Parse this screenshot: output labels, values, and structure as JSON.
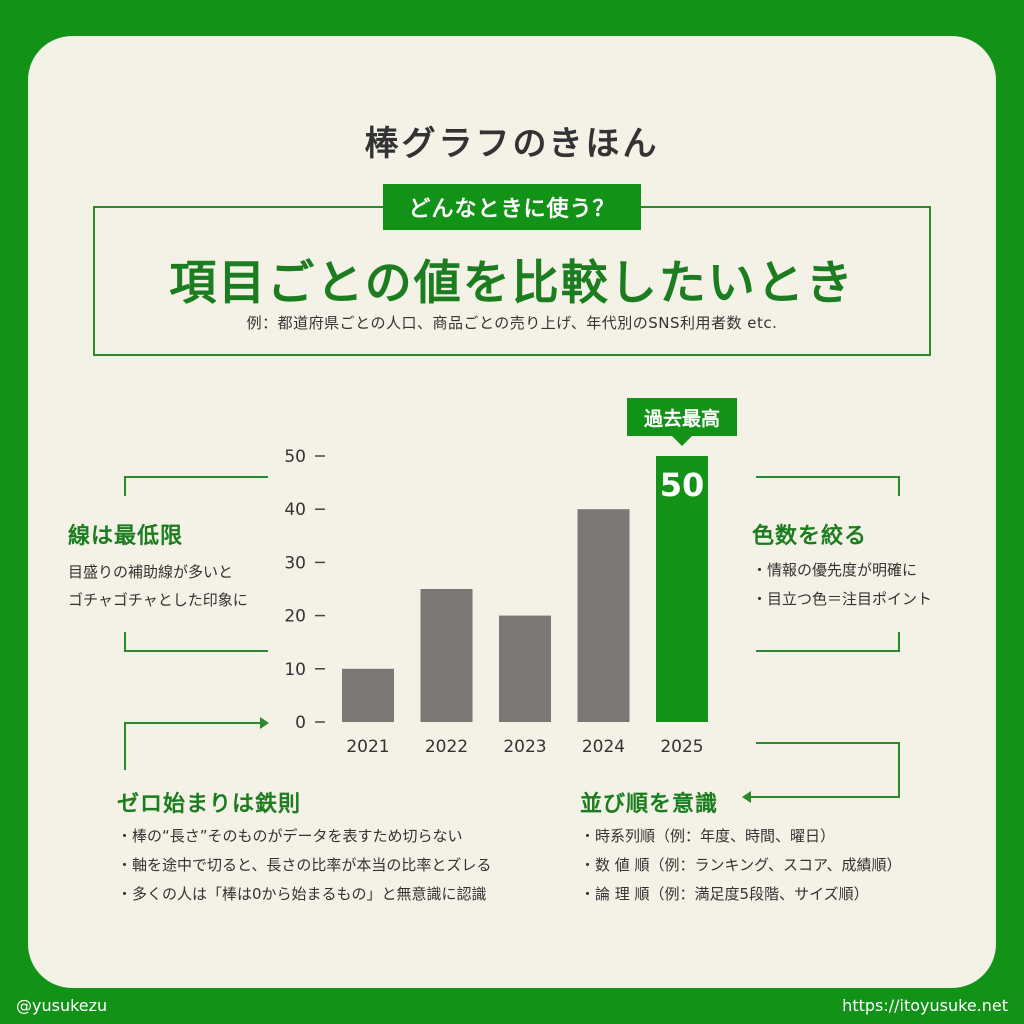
{
  "page": {
    "title": "棒グラフのきほん",
    "tag": "どんなときに使う？",
    "headline": "項目ごとの値を比較したいとき",
    "example": "例：都道府県ごとの人口、商品ごとの売り上げ、年代別のSNS利用者数 etc."
  },
  "notes": {
    "gridlines": {
      "title": "線は最低限",
      "lines": [
        "目盛りの補助線が多いと",
        "ゴチャゴチャとした印象に"
      ]
    },
    "colors": {
      "title": "色数を絞る",
      "bullets": [
        "情報の優先度が明確に",
        "目立つ色＝注目ポイント"
      ]
    },
    "zero": {
      "title": "ゼロ始まりは鉄則",
      "bullets": [
        "棒の“長さ”そのものがデータを表すため切らない",
        "軸を途中で切ると、長さの比率が本当の比率とズレる",
        "多くの人は「棒は0から始まるもの」と無意識に認識"
      ]
    },
    "order": {
      "title": "並び順を意識",
      "bullets": [
        "時系列順（例：年度、時間、曜日）",
        "数 値 順（例：ランキング、スコア、成績順）",
        "論 理 順（例：満足度5段階、サイズ順）"
      ]
    }
  },
  "chart_data": {
    "type": "bar",
    "categories": [
      "2021",
      "2022",
      "2023",
      "2024",
      "2025"
    ],
    "values": [
      10,
      25,
      20,
      40,
      50
    ],
    "ylim": [
      0,
      50
    ],
    "yticks": [
      0,
      10,
      20,
      30,
      40,
      50
    ],
    "highlight_index": 4,
    "highlight_label": "50",
    "highlight_badge": "過去最高",
    "grid": false,
    "colors": {
      "bar": "#7a7875",
      "highlight": "#129318"
    }
  },
  "footer": {
    "handle": "@yusukezu",
    "url": "https://itoyusuke.net"
  }
}
